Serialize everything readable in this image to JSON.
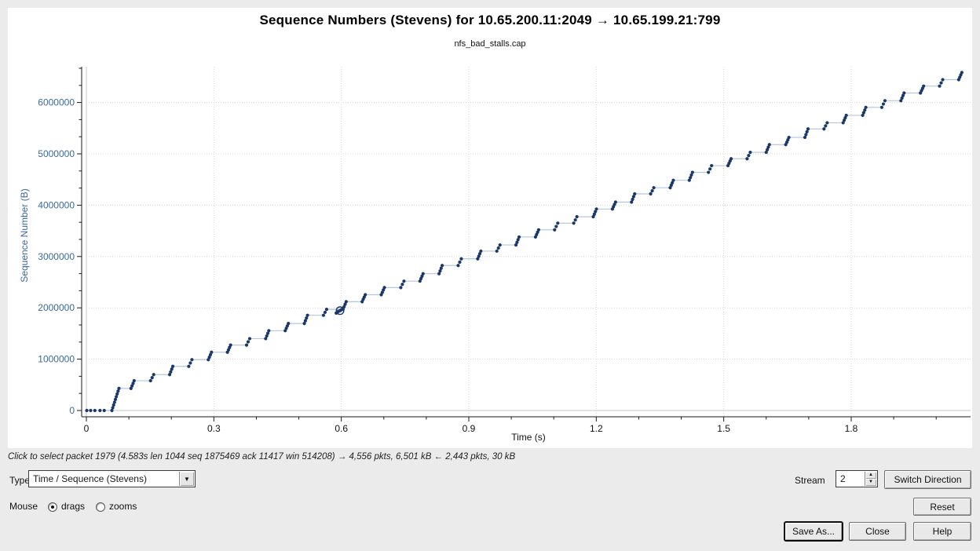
{
  "header": {
    "title": "Sequence Numbers (Stevens) for 10.65.200.11:2049 → 10.65.199.21:799",
    "subtitle": "nfs_bad_stalls.cap"
  },
  "status_bar": {
    "hint": "Click to select packet 1979 (4.583s len 1044 seq 1875469 ack 11417 win 514208) → 4,556 pkts, 6,501 kB ← 2,443 pkts, 30 kB"
  },
  "controls": {
    "type_label": "Type",
    "type_value": "Time / Sequence (Stevens)",
    "mouse_label": "Mouse",
    "mouse_options": [
      {
        "label": "drags",
        "selected": true
      },
      {
        "label": "zooms",
        "selected": false
      }
    ],
    "stream_label": "Stream",
    "stream_value": "2",
    "switch_direction_label": "Switch Direction",
    "reset_label": "Reset",
    "save_as_label": "Save As...",
    "close_label": "Close",
    "help_label": "Help"
  },
  "chart_data": {
    "type": "scatter",
    "title": "Sequence Numbers (Stevens) for 10.65.200.11:2049 → 10.65.199.21:799",
    "subtitle": "nfs_bad_stalls.cap",
    "xlabel": "Time (s)",
    "ylabel": "Sequence Number (B)",
    "xlim": [
      0,
      2.08
    ],
    "ylim": [
      0,
      6700000
    ],
    "x_ticks": [
      0,
      0.3,
      0.6,
      0.9,
      1.2,
      1.5,
      1.8
    ],
    "x_tick_labels": [
      "0",
      "0.3",
      "0.6",
      "0.9",
      "1.2",
      "1.5",
      "1.8"
    ],
    "x_minor_step": 0.1,
    "y_ticks": [
      0,
      1000000,
      2000000,
      3000000,
      4000000,
      5000000,
      6000000
    ],
    "y_tick_labels": [
      "0",
      "1000000",
      "2000000",
      "3000000",
      "4000000",
      "5000000",
      "6000000"
    ],
    "y_minor_count": 2,
    "grid": {
      "major_style": "dotted",
      "zero_lines": "solid"
    },
    "colors": {
      "point": "#19376b",
      "connector": "#b4c7da",
      "grid": "#d8d8d8",
      "zero_line": "#d0d0d0",
      "axis": "#1a1a1a",
      "y_tick_label": "#3a68a0",
      "x_tick_label": "#111111"
    },
    "handshake_points": [
      [
        0.001,
        0
      ],
      [
        0.01,
        0
      ],
      [
        0.02,
        0
      ],
      [
        0.032,
        0
      ],
      [
        0.042,
        0
      ]
    ],
    "bursts": [
      [
        0.06,
        0,
        430000
      ],
      [
        0.105,
        430000,
        580000
      ],
      [
        0.151,
        580000,
        700000
      ],
      [
        0.196,
        700000,
        860000
      ],
      [
        0.241,
        860000,
        990000
      ],
      [
        0.287,
        990000,
        1135000
      ],
      [
        0.332,
        1135000,
        1275000
      ],
      [
        0.377,
        1275000,
        1400000
      ],
      [
        0.422,
        1400000,
        1555000
      ],
      [
        0.468,
        1555000,
        1695000
      ],
      [
        0.513,
        1695000,
        1855000
      ],
      [
        0.558,
        1855000,
        1970000
      ],
      [
        0.604,
        1970000,
        2120000
      ],
      [
        0.649,
        2120000,
        2255000
      ],
      [
        0.694,
        2255000,
        2395000
      ],
      [
        0.74,
        2395000,
        2520000
      ],
      [
        0.785,
        2520000,
        2665000
      ],
      [
        0.83,
        2665000,
        2825000
      ],
      [
        0.875,
        2825000,
        2955000
      ],
      [
        0.921,
        2955000,
        3105000
      ],
      [
        0.966,
        3105000,
        3225000
      ],
      [
        1.011,
        3225000,
        3380000
      ],
      [
        1.057,
        3380000,
        3520000
      ],
      [
        1.102,
        3520000,
        3650000
      ],
      [
        1.147,
        3650000,
        3775000
      ],
      [
        1.193,
        3775000,
        3925000
      ],
      [
        1.238,
        3925000,
        4060000
      ],
      [
        1.283,
        4060000,
        4220000
      ],
      [
        1.328,
        4220000,
        4340000
      ],
      [
        1.374,
        4340000,
        4485000
      ],
      [
        1.419,
        4485000,
        4640000
      ],
      [
        1.464,
        4640000,
        4770000
      ],
      [
        1.51,
        4770000,
        4905000
      ],
      [
        1.555,
        4905000,
        5030000
      ],
      [
        1.6,
        5030000,
        5180000
      ],
      [
        1.646,
        5180000,
        5320000
      ],
      [
        1.691,
        5320000,
        5485000
      ],
      [
        1.736,
        5485000,
        5605000
      ],
      [
        1.781,
        5605000,
        5750000
      ],
      [
        1.827,
        5750000,
        5905000
      ],
      [
        1.872,
        5905000,
        6035000
      ],
      [
        1.917,
        6035000,
        6185000
      ],
      [
        1.963,
        6185000,
        6320000
      ],
      [
        2.008,
        6320000,
        6445000
      ],
      [
        2.053,
        6445000,
        6585000
      ]
    ],
    "hover_point": {
      "t": 0.597,
      "seq": 1945000
    },
    "hover_cluster": [
      [
        0.588,
        1898000
      ],
      [
        0.591,
        1916000
      ],
      [
        0.593,
        1930000
      ],
      [
        0.599,
        1958000
      ],
      [
        0.601,
        1968000
      ]
    ]
  }
}
